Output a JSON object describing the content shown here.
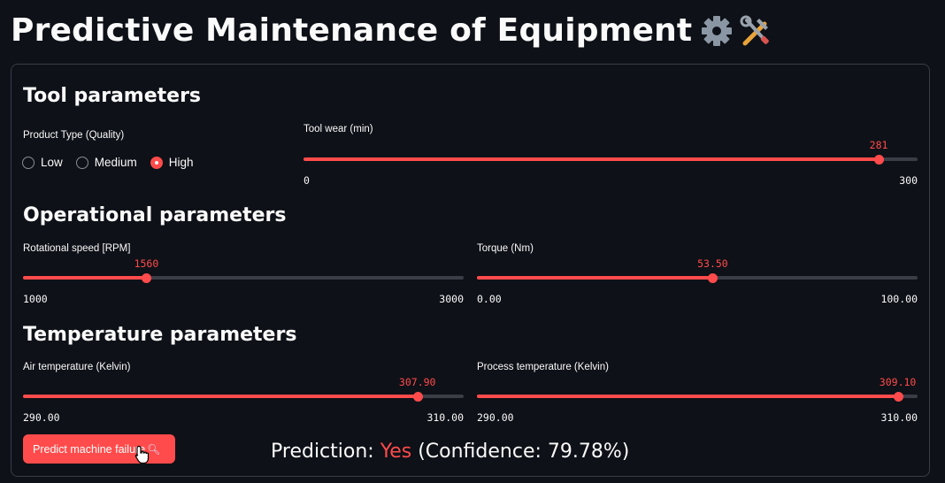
{
  "page": {
    "title": "Predictive Maintenance of Equipment"
  },
  "icons": [
    "gear-icon",
    "tools-icon",
    "magnifier-icon",
    "hand-cursor-icon"
  ],
  "colors": {
    "accent": "#ff4b4b",
    "background": "#0e1117",
    "track": "#3a3d46"
  },
  "tool": {
    "heading": "Tool parameters",
    "product_type": {
      "label": "Product Type (Quality)",
      "options": [
        "Low",
        "Medium",
        "High"
      ],
      "selected": "High"
    },
    "tool_wear": {
      "label": "Tool wear (min)",
      "value": "281",
      "min": "0",
      "max": "300",
      "fraction": 0.9367
    }
  },
  "operational": {
    "heading": "Operational parameters",
    "rotational_speed": {
      "label": "Rotational speed [RPM]",
      "value": "1560",
      "min": "1000",
      "max": "3000",
      "fraction": 0.28
    },
    "torque": {
      "label": "Torque (Nm)",
      "value": "53.50",
      "min": "0.00",
      "max": "100.00",
      "fraction": 0.535
    }
  },
  "temperature": {
    "heading": "Temperature parameters",
    "air": {
      "label": "Air temperature (Kelvin)",
      "value": "307.90",
      "min": "290.00",
      "max": "310.00",
      "fraction": 0.895
    },
    "process": {
      "label": "Process temperature (Kelvin)",
      "value": "309.10",
      "min": "290.00",
      "max": "310.00",
      "fraction": 0.955
    }
  },
  "action": {
    "button_label": "Predict machine failure",
    "prediction_prefix": "Prediction: ",
    "prediction_value": "Yes",
    "prediction_suffix": " (Confidence: 79.78%)"
  }
}
